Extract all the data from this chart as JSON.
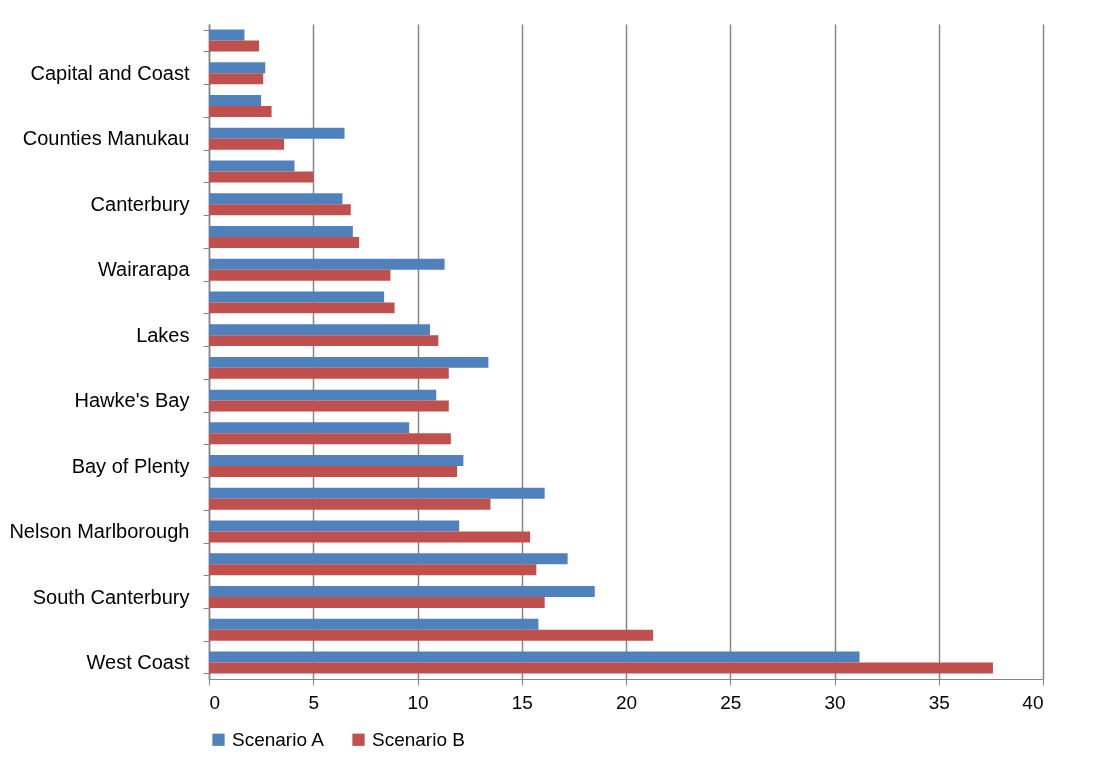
{
  "chart_data": {
    "type": "bar",
    "orientation": "horizontal",
    "categories": [
      null,
      "Capital and Coast",
      null,
      "Counties Manukau",
      null,
      "Canterbury",
      null,
      "Wairarapa",
      null,
      "Lakes",
      null,
      "Hawke's Bay",
      null,
      "Bay of Plenty",
      null,
      "Nelson Marlborough",
      null,
      "South Canterbury",
      null,
      "West Coast"
    ],
    "series": [
      {
        "name": "Scenario A",
        "color": "#4f81bd",
        "values": [
          1.7,
          2.7,
          2.5,
          6.5,
          4.1,
          6.4,
          6.9,
          11.3,
          8.4,
          10.6,
          13.4,
          10.9,
          9.6,
          12.2,
          16.1,
          12.0,
          17.2,
          18.5,
          15.8,
          31.2
        ]
      },
      {
        "name": "Scenario B",
        "color": "#c0504d",
        "values": [
          2.4,
          2.6,
          3.0,
          3.6,
          5.0,
          6.8,
          7.2,
          8.7,
          8.9,
          11.0,
          11.5,
          11.5,
          11.6,
          11.9,
          13.5,
          15.4,
          15.7,
          16.1,
          21.3,
          37.6
        ]
      }
    ],
    "xlim": [
      0,
      40
    ],
    "xticks": [
      0,
      5,
      10,
      15,
      20,
      25,
      30,
      35,
      40
    ],
    "grid": "x",
    "legend": "bottom"
  }
}
